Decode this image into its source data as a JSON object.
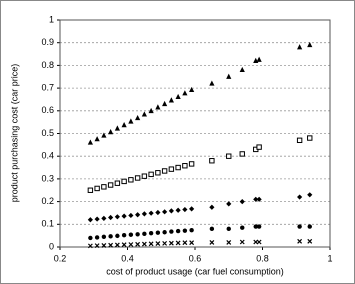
{
  "chart_data": {
    "type": "scatter",
    "x_label": "cost of product usage (car fuel consumption)",
    "y_label": "product purchasing cost (car price)",
    "x": [
      0.29,
      0.31,
      0.33,
      0.35,
      0.37,
      0.39,
      0.41,
      0.43,
      0.45,
      0.47,
      0.49,
      0.51,
      0.53,
      0.55,
      0.57,
      0.59,
      0.65,
      0.7,
      0.74,
      0.78,
      0.79,
      0.91,
      0.94
    ],
    "series": [
      {
        "color": "#000000",
        "marker": "triangle",
        "values": [
          0.46,
          0.475,
          0.491,
          0.506,
          0.522,
          0.537,
          0.553,
          0.568,
          0.584,
          0.599,
          0.615,
          0.63,
          0.646,
          0.661,
          0.677,
          0.692,
          0.72,
          0.75,
          0.78,
          0.82,
          0.825,
          0.88,
          0.89
        ]
      },
      {
        "color": "#000000",
        "marker": "square-open",
        "values": [
          0.25,
          0.258,
          0.265,
          0.273,
          0.281,
          0.289,
          0.296,
          0.304,
          0.312,
          0.32,
          0.327,
          0.335,
          0.343,
          0.35,
          0.358,
          0.366,
          0.38,
          0.4,
          0.41,
          0.43,
          0.44,
          0.47,
          0.48
        ]
      },
      {
        "color": "#000000",
        "marker": "diamond",
        "values": [
          0.12,
          0.123,
          0.126,
          0.13,
          0.133,
          0.136,
          0.139,
          0.142,
          0.146,
          0.149,
          0.152,
          0.155,
          0.159,
          0.162,
          0.165,
          0.168,
          0.175,
          0.19,
          0.2,
          0.21,
          0.21,
          0.22,
          0.23
        ]
      },
      {
        "color": "#000000",
        "marker": "circle",
        "values": [
          0.04,
          0.042,
          0.045,
          0.047,
          0.049,
          0.052,
          0.054,
          0.056,
          0.058,
          0.061,
          0.063,
          0.065,
          0.068,
          0.07,
          0.072,
          0.074,
          0.08,
          0.08,
          0.085,
          0.09,
          0.09,
          0.09,
          0.09
        ]
      },
      {
        "color": "#000000",
        "marker": "cross",
        "values": [
          0.005,
          0.006,
          0.007,
          0.008,
          0.009,
          0.01,
          0.011,
          0.012,
          0.013,
          0.014,
          0.015,
          0.016,
          0.017,
          0.018,
          0.019,
          0.019,
          0.02,
          0.02,
          0.022,
          0.022,
          0.022,
          0.025,
          0.025
        ]
      }
    ],
    "xlim": [
      0.2,
      1
    ],
    "xticks": [
      0.2,
      0.4,
      0.6,
      0.8,
      1
    ],
    "ylim": [
      0,
      1
    ],
    "yticks": [
      0,
      0.1,
      0.2,
      0.3,
      0.4,
      0.5,
      0.6,
      0.7,
      0.8,
      0.9,
      1
    ],
    "grid": true
  }
}
